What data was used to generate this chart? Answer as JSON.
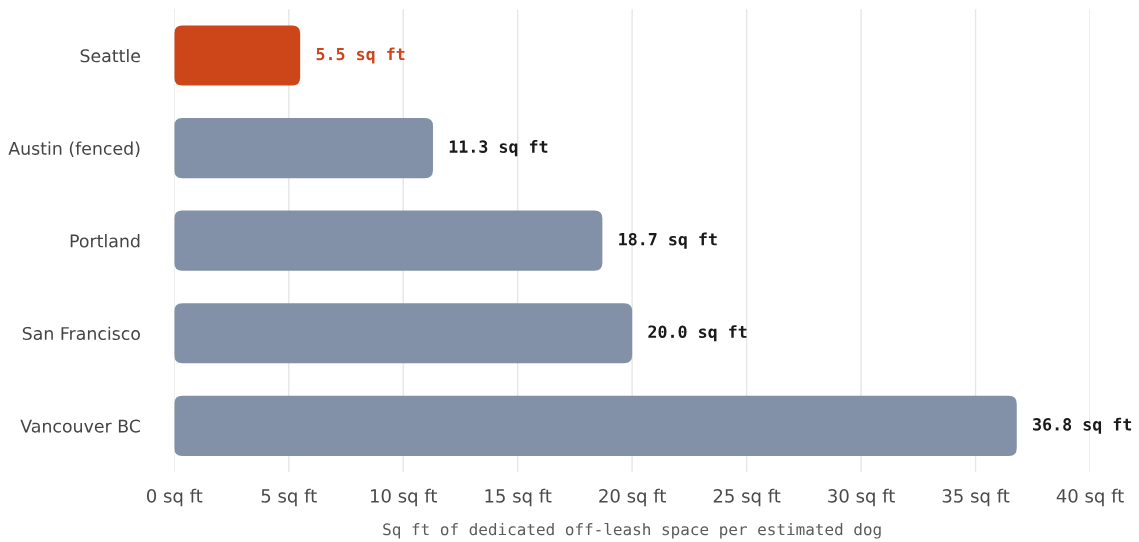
{
  "chart_data": {
    "type": "bar",
    "orientation": "horizontal",
    "categories": [
      "Seattle",
      "Austin (fenced)",
      "Portland",
      "San Francisco",
      "Vancouver BC"
    ],
    "values": [
      5.5,
      11.3,
      18.7,
      20.0,
      36.8
    ],
    "colors": [
      "#cc4619",
      "#8291a7",
      "#8291a7",
      "#8291a7",
      "#8291a7"
    ],
    "value_labels": [
      "5.5 sq ft",
      "11.3 sq ft",
      "18.7 sq ft",
      "20.0 sq ft",
      "36.8 sq ft"
    ],
    "xlim": [
      0,
      40
    ],
    "xticks": [
      {
        "value": 0,
        "label": "0 sq ft"
      },
      {
        "value": 5,
        "label": "5 sq ft"
      },
      {
        "value": 10,
        "label": "10 sq ft"
      },
      {
        "value": 15,
        "label": "15 sq ft"
      },
      {
        "value": 20,
        "label": "20 sq ft"
      },
      {
        "value": 25,
        "label": "25 sq ft"
      },
      {
        "value": 30,
        "label": "30 sq ft"
      },
      {
        "value": 35,
        "label": "35 sq ft"
      },
      {
        "value": 40,
        "label": "40 sq ft"
      }
    ],
    "xlabel": "Sq ft of dedicated off-leash space per estimated dog",
    "grid": "x"
  }
}
